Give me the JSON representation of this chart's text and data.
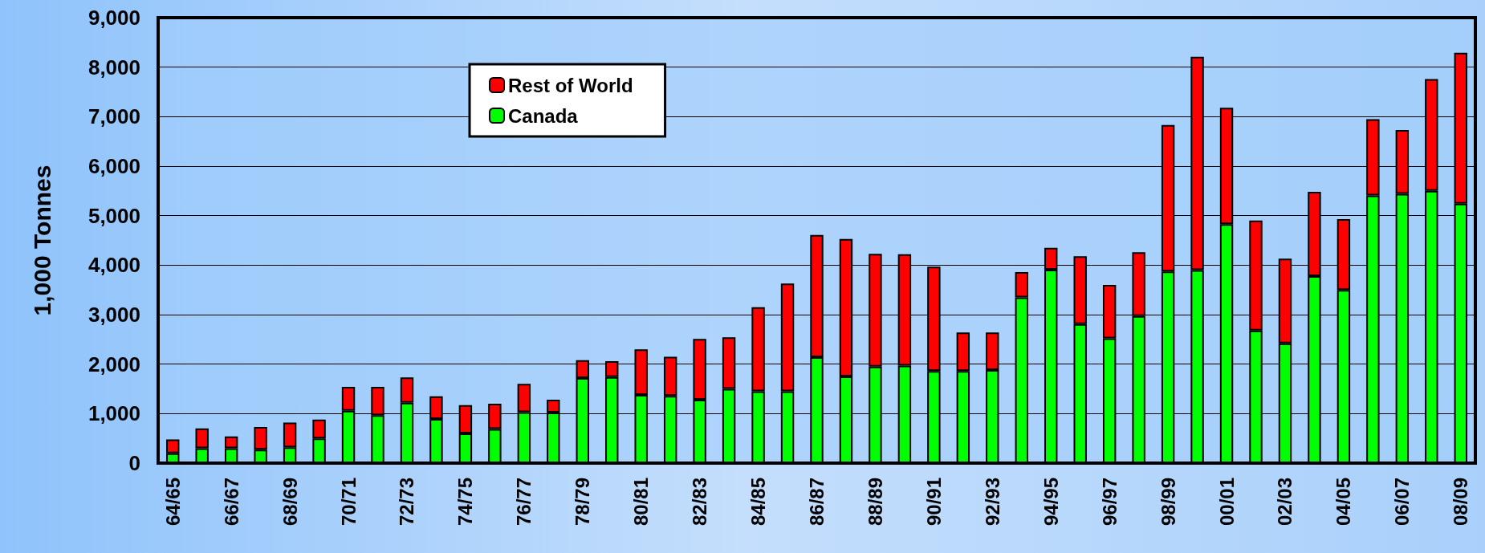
{
  "chart_data": {
    "type": "bar",
    "stacked": true,
    "ylabel": "1,000 Tonnes",
    "categories": [
      "64/65",
      null,
      "66/67",
      null,
      "68/69",
      null,
      "70/71",
      null,
      "72/73",
      null,
      "74/75",
      null,
      "76/77",
      null,
      "78/79",
      null,
      "80/81",
      null,
      "82/83",
      null,
      "84/85",
      null,
      "86/87",
      null,
      "88/89",
      null,
      "90/91",
      null,
      "92/93",
      null,
      "94/95",
      null,
      "96/97",
      null,
      "98/99",
      null,
      "00/01",
      null,
      "02/03",
      null,
      "04/05",
      null,
      "06/07",
      null,
      "08/09"
    ],
    "series": [
      {
        "name": "Canada",
        "color": "#00ff00",
        "values": [
          200,
          300,
          300,
          270,
          320,
          500,
          1060,
          970,
          1220,
          890,
          600,
          690,
          1030,
          1020,
          1720,
          1740,
          1380,
          1360,
          1280,
          1500,
          1450,
          1450,
          2140,
          1750,
          1950,
          1970,
          1860,
          1860,
          1880,
          3350,
          3910,
          2810,
          2520,
          2970,
          3870,
          3900,
          4830,
          2680,
          2420,
          3780,
          3500,
          5410,
          5440,
          5500,
          5240
        ]
      },
      {
        "name": "Rest of World",
        "color": "#ff0000",
        "values": [
          280,
          400,
          240,
          460,
          500,
          380,
          480,
          570,
          510,
          460,
          570,
          510,
          570,
          260,
          360,
          320,
          920,
          790,
          1230,
          1040,
          1700,
          2180,
          2470,
          2780,
          2280,
          2250,
          2110,
          780,
          760,
          510,
          440,
          1370,
          1080,
          1290,
          2960,
          4310,
          2350,
          2220,
          1710,
          1700,
          1430,
          1540,
          1290,
          2260,
          3050
        ]
      }
    ],
    "ylim": [
      0,
      9000
    ],
    "yticks": [
      {
        "value": 0,
        "label": "0"
      },
      {
        "value": 1000,
        "label": "1,000"
      },
      {
        "value": 2000,
        "label": "2,000"
      },
      {
        "value": 3000,
        "label": "3,000"
      },
      {
        "value": 4000,
        "label": "4,000"
      },
      {
        "value": 5000,
        "label": "5,000"
      },
      {
        "value": 6000,
        "label": "6,000"
      },
      {
        "value": 7000,
        "label": "7,000"
      },
      {
        "value": 8000,
        "label": "8,000"
      },
      {
        "value": 9000,
        "label": "9,000"
      }
    ],
    "grid": "y",
    "legend": "top left"
  }
}
